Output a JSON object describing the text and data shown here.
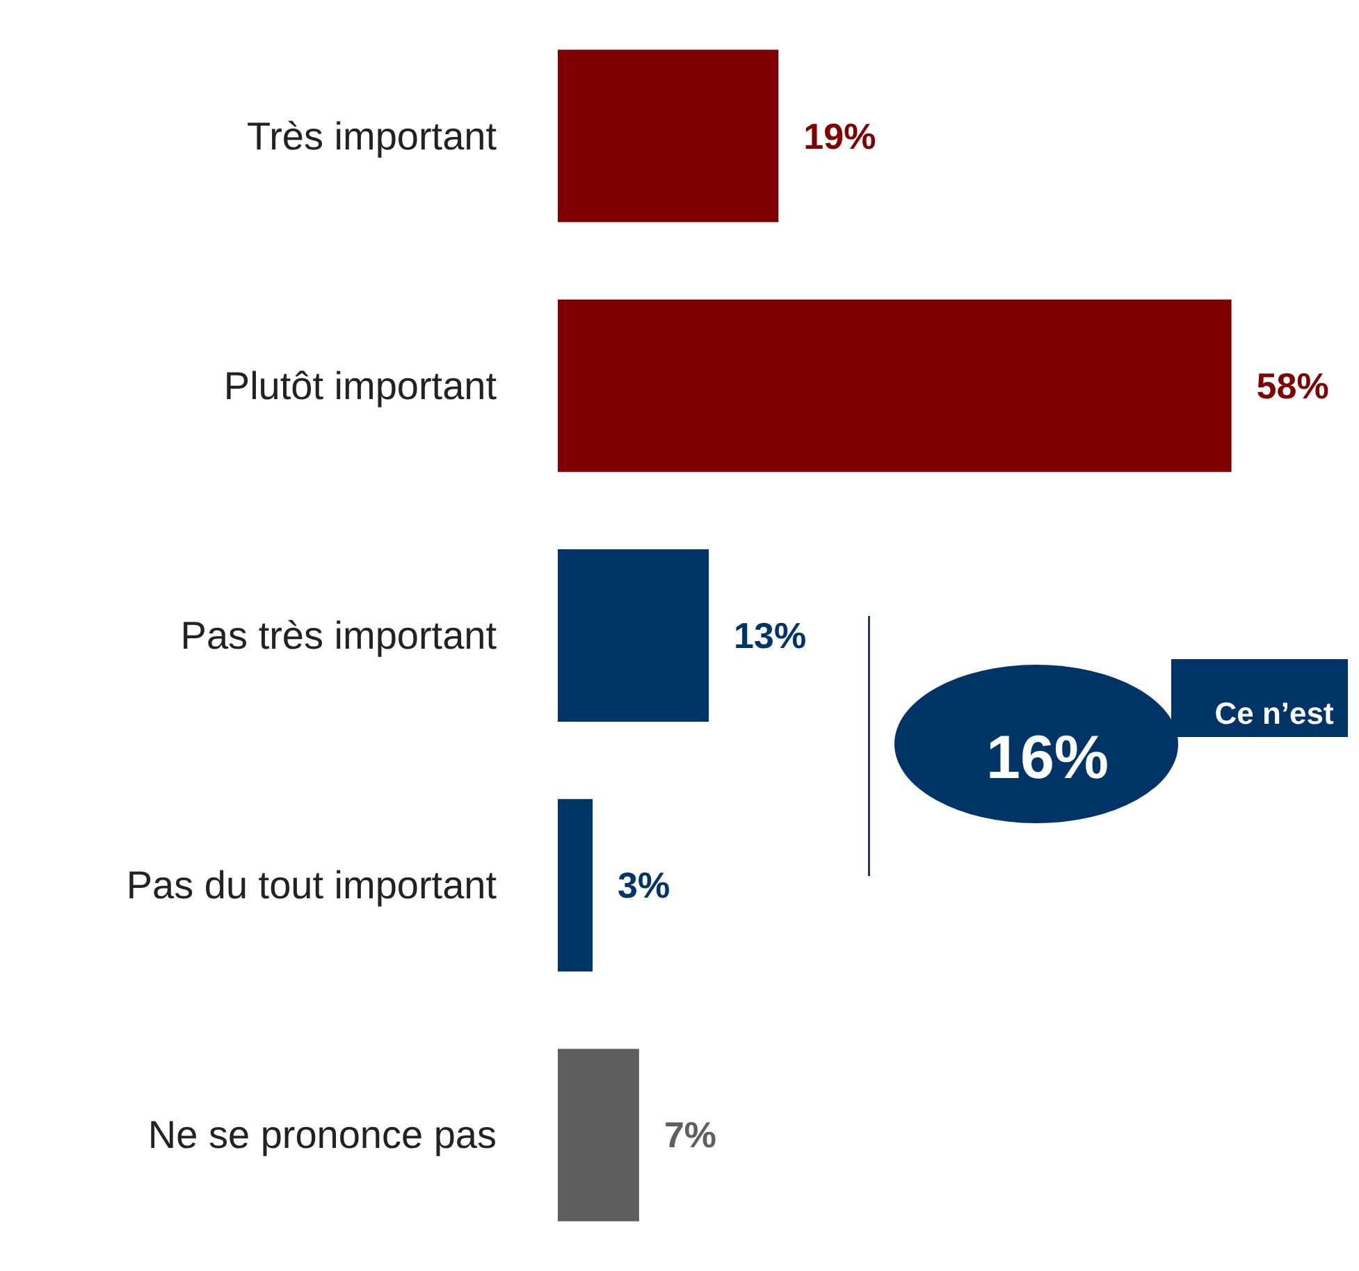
{
  "chart_data": {
    "type": "bar",
    "orientation": "horizontal",
    "categories": [
      "Très important",
      "Plutôt important",
      "Pas très important",
      "Pas du tout important",
      "Ne se prononce pas"
    ],
    "values": [
      19,
      58,
      13,
      3,
      7
    ],
    "colors": [
      "#7f0000",
      "#7f0000",
      "#003366",
      "#003366",
      "#5f5f5f"
    ],
    "value_labels": [
      "19%",
      "58%",
      "13%",
      "3%",
      "7%"
    ],
    "annotations": [
      "16%",
      "Ce n’est"
    ]
  }
}
